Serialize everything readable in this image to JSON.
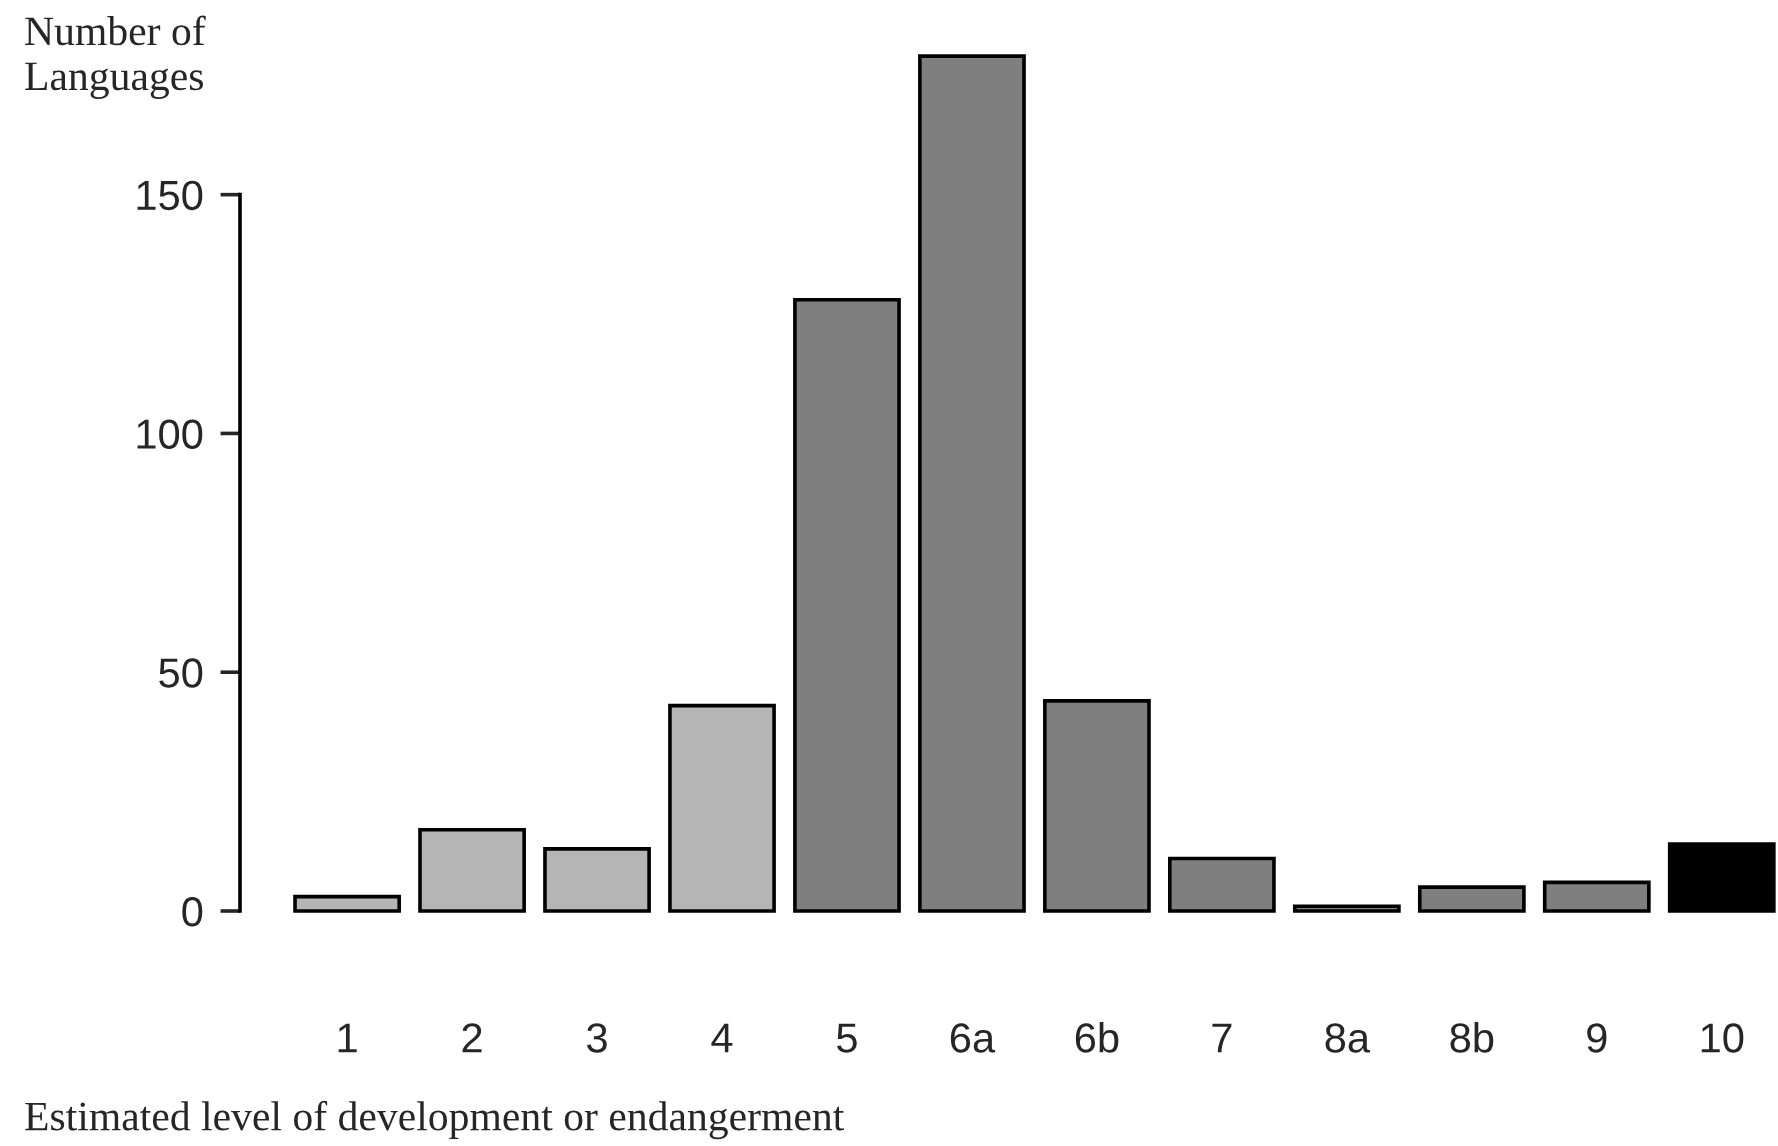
{
  "chart_data": {
    "type": "bar",
    "ylabel": "Number of\nLanguages",
    "xlabel": "Estimated level of development or endangerment",
    "categories": [
      "1",
      "2",
      "3",
      "4",
      "5",
      "6a",
      "6b",
      "7",
      "8a",
      "8b",
      "9",
      "10"
    ],
    "values": [
      3,
      17,
      13,
      43,
      128,
      179,
      44,
      11,
      1,
      5,
      6,
      14
    ],
    "colors": [
      "#b5b5b5",
      "#b5b5b5",
      "#b5b5b5",
      "#b5b5b5",
      "#7f7f7f",
      "#7f7f7f",
      "#7f7f7f",
      "#7f7f7f",
      "#7f7f7f",
      "#7f7f7f",
      "#7f7f7f",
      "#000000"
    ],
    "ylim": [
      0,
      179
    ],
    "yticks": [
      0,
      50,
      100,
      150
    ]
  }
}
